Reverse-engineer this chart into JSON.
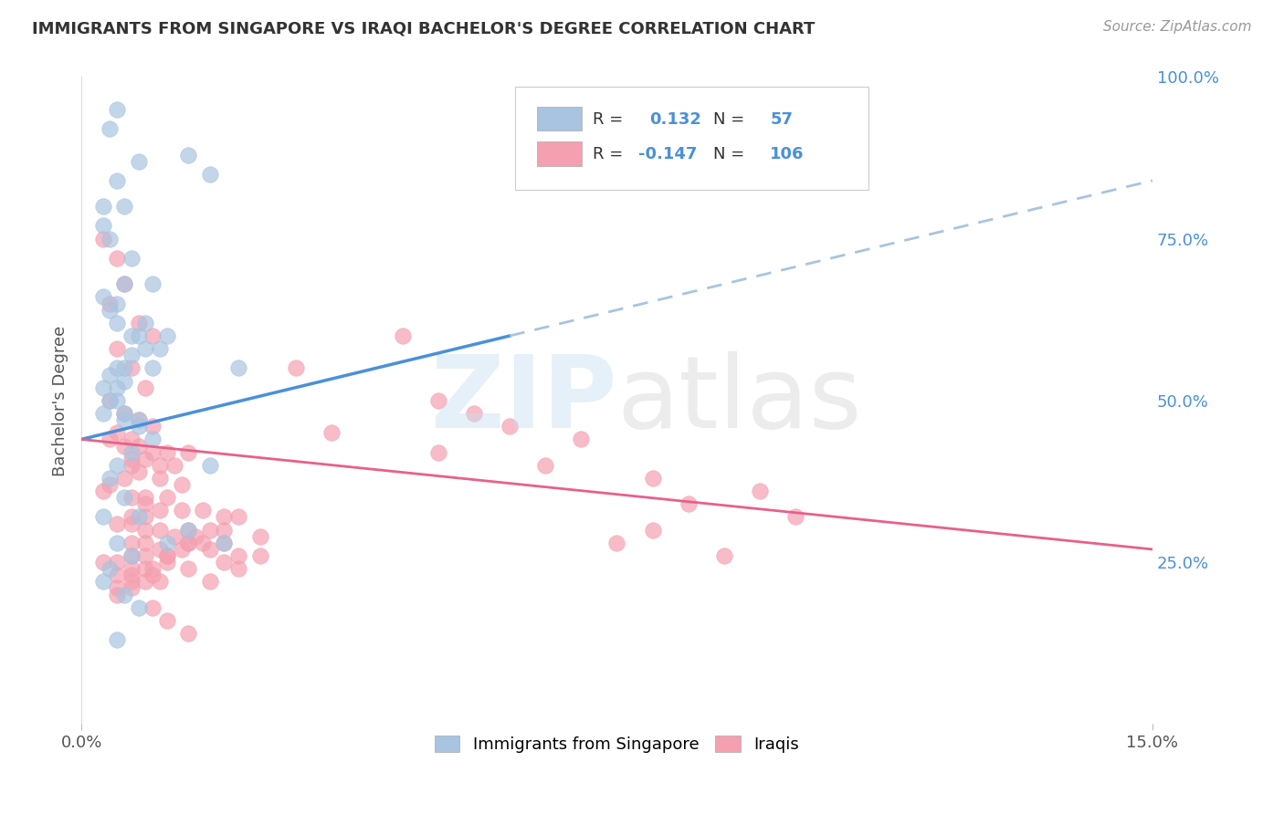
{
  "title": "IMMIGRANTS FROM SINGAPORE VS IRAQI BACHELOR'S DEGREE CORRELATION CHART",
  "source": "Source: ZipAtlas.com",
  "ylabel": "Bachelor's Degree",
  "legend_r1_label": "R =",
  "legend_r1_val": "0.132",
  "legend_n1_label": "N =",
  "legend_n1_val": "57",
  "legend_r2_label": "R =",
  "legend_r2_val": "-0.147",
  "legend_n2_label": "N =",
  "legend_n2_val": "106",
  "color_singapore": "#a8c4e0",
  "color_iraq": "#f4a0b0",
  "trendline_sg_solid": "#4a90d9",
  "trendline_sg_dashed": "#a8c4e0",
  "trendline_iq": "#e8608a",
  "legend_label_singapore": "Immigrants from Singapore",
  "legend_label_iraq": "Iraqis",
  "xlim": [
    0,
    15
  ],
  "ylim": [
    0,
    100
  ],
  "sg_x": [
    0.5,
    0.8,
    1.5,
    1.8,
    0.4,
    0.6,
    0.3,
    0.7,
    1.0,
    0.5,
    0.3,
    0.4,
    0.6,
    0.8,
    0.5,
    0.9,
    1.1,
    0.7,
    0.6,
    0.4,
    0.3,
    0.5,
    0.6,
    0.8,
    1.2,
    0.4,
    0.3,
    0.5,
    0.7,
    0.9,
    1.0,
    0.6,
    0.5,
    0.4,
    0.3,
    0.6,
    0.8,
    1.0,
    0.7,
    0.5,
    0.4,
    0.6,
    0.8,
    1.5,
    2.0,
    0.5,
    1.8,
    2.2,
    0.3,
    0.5,
    0.7,
    0.4,
    0.3,
    0.6,
    0.8,
    0.5,
    1.2
  ],
  "sg_y": [
    95,
    87,
    88,
    85,
    92,
    80,
    77,
    72,
    68,
    84,
    80,
    75,
    68,
    60,
    65,
    62,
    58,
    57,
    55,
    54,
    52,
    50,
    48,
    47,
    60,
    64,
    66,
    62,
    60,
    58,
    55,
    53,
    52,
    50,
    48,
    47,
    46,
    44,
    42,
    40,
    38,
    35,
    32,
    30,
    28,
    55,
    40,
    55,
    32,
    28,
    26,
    24,
    22,
    20,
    18,
    13,
    28
  ],
  "iq_x": [
    0.3,
    0.5,
    0.6,
    0.4,
    0.8,
    1.0,
    0.5,
    0.7,
    0.9,
    0.4,
    0.6,
    0.8,
    1.0,
    0.5,
    0.7,
    0.4,
    0.6,
    0.8,
    1.0,
    1.2,
    1.5,
    0.7,
    0.9,
    1.1,
    1.3,
    0.8,
    0.6,
    0.4,
    0.3,
    0.7,
    0.9,
    1.1,
    1.4,
    0.7,
    0.9,
    0.5,
    0.7,
    0.9,
    1.1,
    1.3,
    1.6,
    0.7,
    0.9,
    1.1,
    1.4,
    0.9,
    0.7,
    0.5,
    0.3,
    0.7,
    0.9,
    0.5,
    0.7,
    0.9,
    1.1,
    0.7,
    0.5,
    0.9,
    1.1,
    0.7,
    1.4,
    1.2,
    1.7,
    2.0,
    1.5,
    1.2,
    1.0,
    1.7,
    1.5,
    2.2,
    2.0,
    1.8,
    2.5,
    2.2,
    2.0,
    1.5,
    1.2,
    1.8,
    2.2,
    2.5,
    2.0,
    1.8,
    1.5,
    1.2,
    1.0,
    0.7,
    0.5,
    1.0,
    1.2,
    1.5,
    4.5,
    3.5,
    3.0,
    5.0,
    5.5,
    6.0,
    7.0,
    5.0,
    6.5,
    8.0,
    9.5,
    8.5,
    10.0,
    8.0,
    7.5,
    9.0
  ],
  "iq_y": [
    75,
    72,
    68,
    65,
    62,
    60,
    58,
    55,
    52,
    50,
    48,
    47,
    46,
    45,
    44,
    44,
    43,
    43,
    42,
    42,
    42,
    41,
    41,
    40,
    40,
    39,
    38,
    37,
    36,
    35,
    34,
    33,
    33,
    32,
    32,
    31,
    31,
    30,
    30,
    29,
    29,
    28,
    28,
    27,
    27,
    26,
    26,
    25,
    25,
    24,
    24,
    23,
    23,
    22,
    22,
    21,
    21,
    35,
    38,
    40,
    37,
    35,
    33,
    30,
    28,
    25,
    23,
    28,
    30,
    32,
    25,
    27,
    29,
    26,
    28,
    24,
    26,
    22,
    24,
    26,
    32,
    30,
    28,
    26,
    24,
    22,
    20,
    18,
    16,
    14,
    60,
    45,
    55,
    50,
    48,
    46,
    44,
    42,
    40,
    38,
    36,
    34,
    32,
    30,
    28,
    26
  ],
  "sg_trend_x0": 0,
  "sg_trend_y0": 44,
  "sg_trend_x1": 6,
  "sg_trend_y1": 60,
  "sg_dash_x0": 6,
  "sg_dash_y0": 60,
  "sg_dash_x1": 15,
  "sg_dash_y1": 84,
  "iq_trend_x0": 0,
  "iq_trend_y0": 44,
  "iq_trend_x1": 15,
  "iq_trend_y1": 27,
  "right_yticks": [
    25,
    50,
    75,
    100
  ],
  "right_yticklabels": [
    "25.0%",
    "50.0%",
    "75.0%",
    "100.0%"
  ]
}
